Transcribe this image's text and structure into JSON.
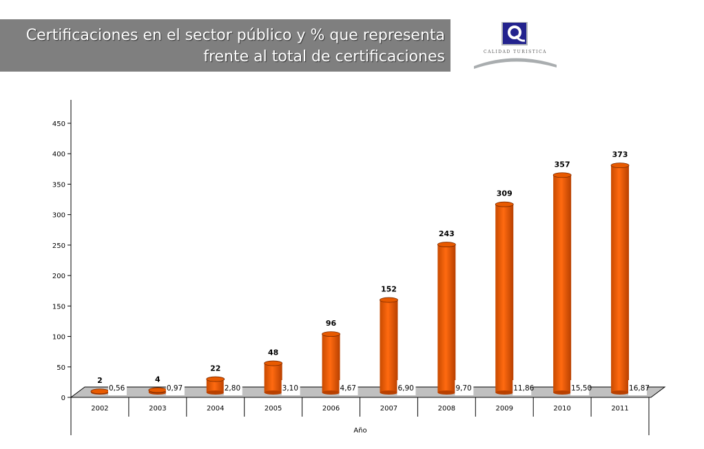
{
  "header": {
    "title_line1": "Certificaciones en el sector público y % que representa",
    "title_line2": "frente al total de certificaciones",
    "logo_text": "CALIDAD TURISTICA"
  },
  "chart_data": {
    "type": "bar",
    "title": "",
    "xlabel": "Año",
    "ylabel": "",
    "ylim": [
      0,
      450
    ],
    "yticks": [
      0,
      50,
      100,
      150,
      200,
      250,
      300,
      350,
      400,
      450
    ],
    "categories": [
      "2002",
      "2003",
      "2004",
      "2005",
      "2006",
      "2007",
      "2008",
      "2009",
      "2010",
      "2011"
    ],
    "series": [
      {
        "values": [
          2,
          4,
          22,
          48,
          96,
          152,
          243,
          309,
          357,
          373
        ],
        "labels": [
          "2",
          "4",
          "22",
          "48",
          "96",
          "152",
          "243",
          "309",
          "357",
          "373"
        ],
        "color": "#e85a00"
      },
      {
        "values": [
          0.56,
          0.97,
          2.8,
          3.1,
          4.67,
          6.9,
          9.7,
          11.86,
          15.5,
          16.87
        ],
        "labels": [
          "0,56",
          "0,97",
          "2,80",
          "3,10",
          "4,67",
          "6,90",
          "9,70",
          "11,86",
          "15,50",
          "16,87"
        ],
        "color": "#8b2252"
      }
    ],
    "grid": false,
    "legend": "none"
  }
}
